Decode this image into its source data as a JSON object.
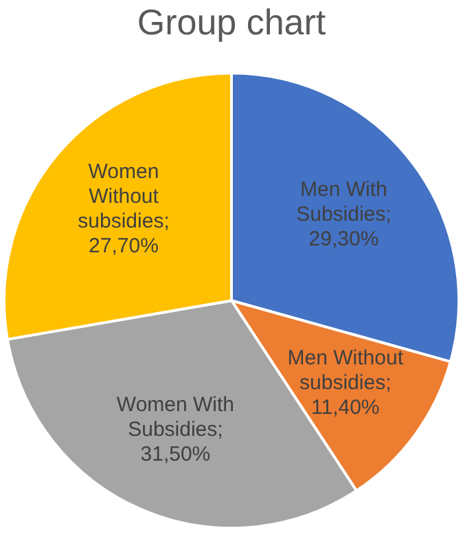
{
  "chart_data": {
    "type": "pie",
    "title": "Group chart",
    "categories": [
      "Men With Subsidies",
      "Men Without subsidies",
      "Women With Subsidies",
      "Women Without subsidies"
    ],
    "values": [
      29.3,
      11.4,
      31.5,
      27.7
    ],
    "colors": [
      "#4472c4",
      "#ed7d31",
      "#a5a5a5",
      "#ffc000"
    ],
    "value_labels": [
      "; 29,30%",
      "; 11,40%",
      "; 31,50%",
      "; 27,70%"
    ],
    "legend": false
  }
}
